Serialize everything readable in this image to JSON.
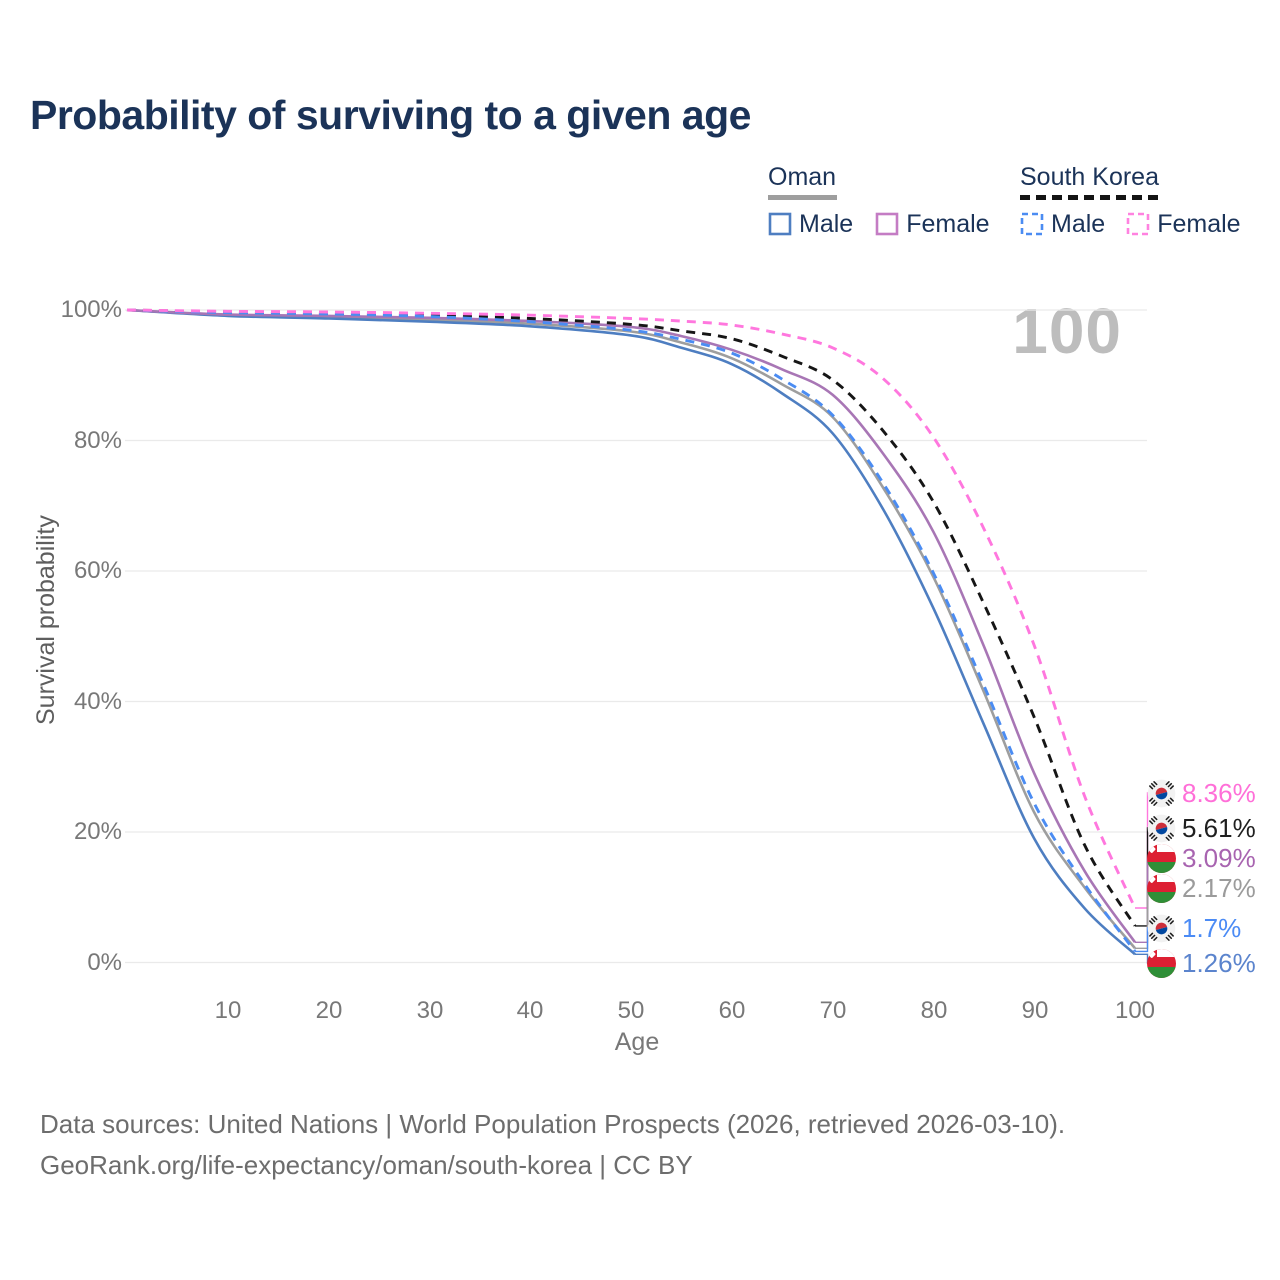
{
  "title": "Probability of surviving to a given age",
  "watermark": "100",
  "legend": {
    "oman": {
      "label": "Oman",
      "male": "Male",
      "female": "Female"
    },
    "south_korea": {
      "label": "South Korea",
      "male": "Male",
      "female": "Female"
    }
  },
  "colors": {
    "grid": "#eaeaea",
    "oman_underline": "#9e9e9e",
    "south_korea_underline": "#141414"
  },
  "chart_data": {
    "type": "line",
    "title": "Probability of surviving to a given age",
    "xlabel": "Age",
    "ylabel": "Survival probability",
    "xlim": [
      0,
      100
    ],
    "ylim": [
      0,
      100
    ],
    "grid": "horizontal",
    "x_tick_labels": [
      "10",
      "20",
      "30",
      "40",
      "50",
      "60",
      "70",
      "80",
      "90",
      "100"
    ],
    "y_tick_labels": [
      "100%",
      "80%",
      "60%",
      "40%",
      "20%",
      "0%"
    ],
    "y_tick_values": [
      100,
      80,
      60,
      40,
      20,
      0
    ],
    "ages": [
      0,
      10,
      20,
      30,
      40,
      50,
      55,
      60,
      65,
      70,
      75,
      80,
      85,
      90,
      95,
      100
    ],
    "series": [
      {
        "name": "South Korea Female",
        "country": "South Korea",
        "sex": "Female",
        "style": "dashed",
        "color": "#ff77de",
        "label_color": "#ff6fd8",
        "flag": "south-korea",
        "end_label": "8.36%",
        "values": [
          100,
          99.8,
          99.7,
          99.5,
          99.2,
          98.7,
          98.3,
          97.7,
          96.3,
          94.2,
          89.5,
          80.5,
          66.5,
          48.6,
          25.5,
          8.36
        ]
      },
      {
        "name": "South Korea Both sexes",
        "country": "South Korea",
        "sex": "Both",
        "style": "dashed",
        "color": "#161616",
        "label_color": "#1f1f1f",
        "flag": "south-korea",
        "end_label": "5.61%",
        "values": [
          100,
          99.7,
          99.5,
          99.2,
          98.7,
          97.8,
          96.8,
          95.6,
          92.9,
          89.3,
          81.5,
          70.6,
          55,
          37.6,
          18,
          5.61
        ]
      },
      {
        "name": "Oman Female",
        "country": "Oman",
        "sex": "Female",
        "style": "solid",
        "color": "#a876b5",
        "label_color": "#a864b0",
        "flag": "oman",
        "end_label": "3.09%",
        "values": [
          100,
          99.3,
          99.1,
          98.8,
          98.3,
          97.4,
          96,
          93.9,
          90.9,
          87,
          78,
          66,
          48.5,
          29,
          14,
          3.09
        ]
      },
      {
        "name": "Oman Both sexes",
        "country": "Oman",
        "sex": "Both",
        "style": "solid",
        "color": "#9e9e9e",
        "label_color": "#9b9b9b",
        "flag": "oman",
        "end_label": "2.17%",
        "values": [
          100,
          99.2,
          98.9,
          98.5,
          97.9,
          96.7,
          95,
          92.6,
          88.6,
          83.6,
          72.8,
          59.1,
          41.5,
          23,
          11.5,
          2.17
        ]
      },
      {
        "name": "South Korea Male",
        "country": "South Korea",
        "sex": "Male",
        "style": "dashed",
        "color": "#4b8cf2",
        "label_color": "#4b8bf5",
        "flag": "south-korea",
        "end_label": "1.7%",
        "values": [
          100,
          99.6,
          99.4,
          99,
          98.2,
          96.9,
          95.5,
          93.4,
          89.4,
          83.9,
          73.5,
          59.7,
          42.5,
          24.4,
          12,
          1.7
        ]
      },
      {
        "name": "Oman Male",
        "country": "Oman",
        "sex": "Male",
        "style": "solid",
        "color": "#4e7ec1",
        "label_color": "#5b84cd",
        "flag": "oman",
        "end_label": "1.26%",
        "values": [
          100,
          99.1,
          98.7,
          98.2,
          97.5,
          96.1,
          94.2,
          91.7,
          87.2,
          81.1,
          69.5,
          54.3,
          36.5,
          19,
          8.3,
          1.26
        ]
      }
    ]
  },
  "footer": {
    "line1": "Data sources: United Nations | World Population Prospects (2026, retrieved 2026-03-10).",
    "line2": "GeoRank.org/life-expectancy/oman/south-korea | CC BY"
  }
}
